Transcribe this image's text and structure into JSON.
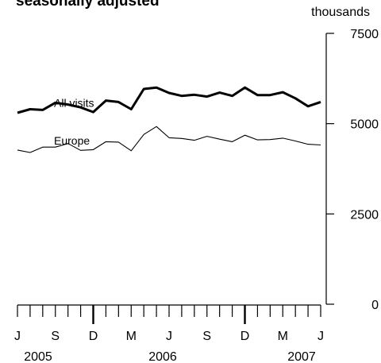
{
  "header": {
    "title": "seasonally  adjusted",
    "unit": "thousands"
  },
  "chart_data": {
    "type": "line",
    "title": "seasonally  adjusted",
    "ylabel": "thousands",
    "ylim": [
      0,
      7500
    ],
    "y_ticks": [
      0,
      2500,
      5000,
      7500
    ],
    "y_tick_labels": [
      "0",
      "2500",
      "5000",
      "7500"
    ],
    "x_tick_labels": [
      "J",
      "S",
      "D",
      "M",
      "J",
      "S",
      "D",
      "M",
      "J"
    ],
    "x_tick_months": [
      "Jun 2005",
      "Sep 2005",
      "Dec 2005",
      "Mar 2006",
      "Jun 2006",
      "Sep 2006",
      "Dec 2006",
      "Mar 2007",
      "Jun 2007"
    ],
    "year_labels": [
      "2005",
      "2006",
      "2007"
    ],
    "x": [
      "Jun 2005",
      "Jul 2005",
      "Aug 2005",
      "Sep 2005",
      "Oct 2005",
      "Nov 2005",
      "Dec 2005",
      "Jan 2006",
      "Feb 2006",
      "Mar 2006",
      "Apr 2006",
      "May 2006",
      "Jun 2006",
      "Jul 2006",
      "Aug 2006",
      "Sep 2006",
      "Oct 2006",
      "Nov 2006",
      "Dec 2006",
      "Jan 2007",
      "Feb 2007",
      "Mar 2007",
      "Apr 2007",
      "May 2007",
      "Jun 2007"
    ],
    "series": [
      {
        "name": "All visits",
        "bold": true,
        "values": [
          5300,
          5400,
          5380,
          5580,
          5530,
          5450,
          5320,
          5640,
          5600,
          5400,
          5960,
          6000,
          5850,
          5770,
          5800,
          5750,
          5860,
          5770,
          6000,
          5790,
          5790,
          5870,
          5700,
          5480,
          5600
        ]
      },
      {
        "name": "Europe",
        "bold": false,
        "values": [
          4270,
          4200,
          4350,
          4350,
          4450,
          4260,
          4280,
          4500,
          4490,
          4250,
          4700,
          4920,
          4610,
          4590,
          4540,
          4650,
          4570,
          4500,
          4680,
          4550,
          4560,
          4600,
          4520,
          4430,
          4410
        ]
      }
    ]
  }
}
